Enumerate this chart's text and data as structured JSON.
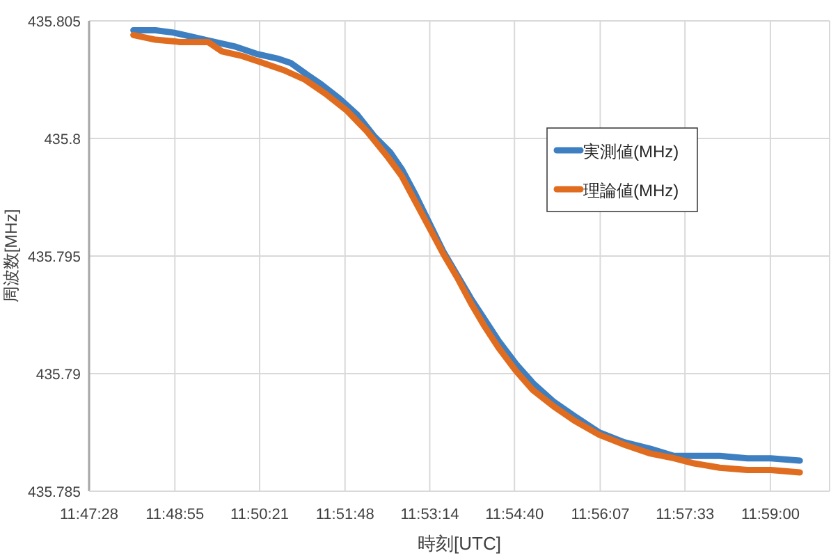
{
  "chart_data": {
    "type": "line",
    "xlabel": "時刻[UTC]",
    "ylabel": "周波数[MHz]",
    "xlim": [
      11.7911,
      12.0
    ],
    "xticks": [
      {
        "value": 11.7911,
        "label": "11:47:28"
      },
      {
        "value": 11.8153,
        "label": "11:48:55"
      },
      {
        "value": 11.8392,
        "label": "11:50:21"
      },
      {
        "value": 11.8633,
        "label": "11:51:48"
      },
      {
        "value": 11.8872,
        "label": "11:53:14"
      },
      {
        "value": 11.9111,
        "label": "11:54:40"
      },
      {
        "value": 11.9353,
        "label": "11:56:07"
      },
      {
        "value": 11.9592,
        "label": "11:57:33"
      },
      {
        "value": 11.9833,
        "label": "11:59:00"
      }
    ],
    "ylim": [
      435.785,
      435.805
    ],
    "yticks": [
      435.785,
      435.79,
      435.795,
      435.8,
      435.805
    ],
    "grid": true,
    "legend": "right",
    "marker": "none",
    "line_style": "solid",
    "series": [
      {
        "name": "実測値(MHz)",
        "color": "#3d7fc1",
        "x": [
          11.8036,
          11.8098,
          11.8149,
          11.8208,
          11.8266,
          11.8325,
          11.8383,
          11.8442,
          11.8481,
          11.8527,
          11.8566,
          11.8617,
          11.8668,
          11.8715,
          11.8761,
          11.8793,
          11.8832,
          11.8871,
          11.891,
          11.8949,
          11.8988,
          11.9027,
          11.9066,
          11.9116,
          11.9163,
          11.9222,
          11.928,
          11.935,
          11.9417,
          11.9495,
          11.9561,
          11.9612,
          11.969,
          11.9768,
          11.9834,
          11.9916
        ],
        "values": [
          435.8046,
          435.8046,
          435.8045,
          435.8043,
          435.8041,
          435.8039,
          435.8036,
          435.8034,
          435.8032,
          435.8027,
          435.8023,
          435.8017,
          435.801,
          435.8001,
          435.7994,
          435.7987,
          435.7976,
          435.7964,
          435.7952,
          435.7942,
          435.7932,
          435.7923,
          435.7914,
          435.7904,
          435.7896,
          435.7888,
          435.7882,
          435.7875,
          435.7871,
          435.7868,
          435.7865,
          435.7865,
          435.7865,
          435.7864,
          435.7864,
          435.7863
        ]
      },
      {
        "name": "理論値(MHz)",
        "color": "#e06c1f",
        "x": [
          11.8036,
          11.8098,
          11.8169,
          11.8227,
          11.8247,
          11.8286,
          11.8344,
          11.8403,
          11.8461,
          11.852,
          11.8578,
          11.8637,
          11.8695,
          11.8754,
          11.8793,
          11.8832,
          11.8871,
          11.891,
          11.8949,
          11.8988,
          11.9027,
          11.9066,
          11.9116,
          11.9163,
          11.9222,
          11.928,
          11.935,
          11.9417,
          11.9495,
          11.9561,
          11.9612,
          11.969,
          11.9768,
          11.9834,
          11.9916
        ],
        "values": [
          435.8044,
          435.8042,
          435.8041,
          435.8041,
          435.8041,
          435.8037,
          435.8035,
          435.8032,
          435.8029,
          435.8025,
          435.8019,
          435.8012,
          435.8003,
          435.7992,
          435.7984,
          435.7973,
          435.7962,
          435.7951,
          435.7941,
          435.793,
          435.792,
          435.7911,
          435.7901,
          435.7893,
          435.7886,
          435.788,
          435.7874,
          435.787,
          435.7866,
          435.7864,
          435.7862,
          435.786,
          435.7859,
          435.7859,
          435.7858
        ]
      }
    ]
  }
}
